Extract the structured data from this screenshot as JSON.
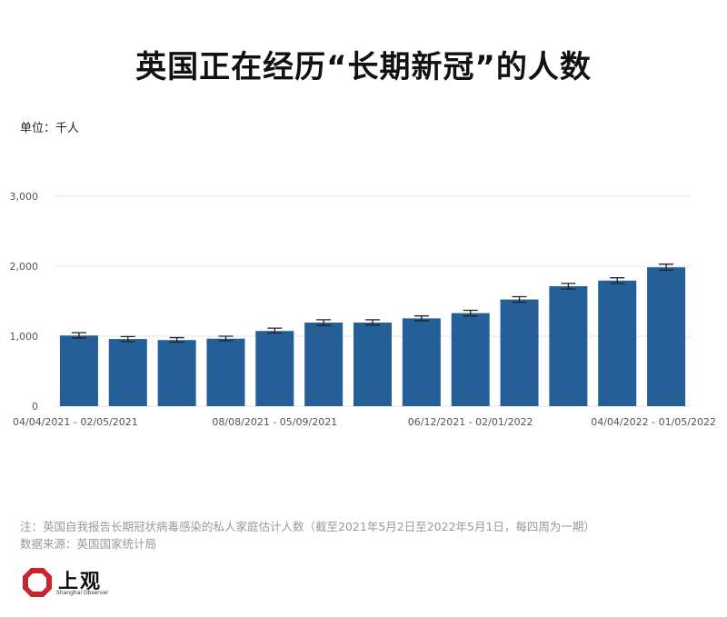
{
  "title": "英国正在经历“长期新冠”的人数",
  "unit_label": "单位：千人",
  "note": "注：英国自我报告长期冠状病毒感染的私人家庭估计人数（截至2021年5月2日至2022年5月1日，每四周为一期）",
  "source": "数据来源：英国国家统计局",
  "logo": {
    "name": "上观",
    "subtitle": "Shanghai Observer"
  },
  "colors": {
    "bar": "#255f97",
    "grid": "#e3e3e3",
    "errorbar": "#222222",
    "logo_red": "#c8262c"
  },
  "chart_data": {
    "type": "bar",
    "title": "英国正在经历“长期新冠”的人数",
    "ylabel": "单位：千人",
    "ylim": [
      0,
      3000
    ],
    "yticks": [
      0,
      1000,
      2000,
      3000
    ],
    "ytick_labels": [
      "0",
      "1,000",
      "2,000",
      "3,000"
    ],
    "grid": true,
    "xtick_labels": [
      {
        "index": 0,
        "label": "04/04/2021 - 02/05/2021"
      },
      {
        "index": 4,
        "label": "08/08/2021 - 05/09/2021"
      },
      {
        "index": 8,
        "label": "06/12/2021 - 02/01/2022"
      },
      {
        "index": 12,
        "label": "04/04/2022 - 01/05/2022"
      }
    ],
    "values": [
      1010,
      960,
      945,
      965,
      1075,
      1195,
      1195,
      1255,
      1330,
      1525,
      1715,
      1795,
      1985
    ],
    "error_low": [
      975,
      925,
      915,
      935,
      1045,
      1155,
      1160,
      1220,
      1290,
      1485,
      1675,
      1755,
      1945
    ],
    "error_high": [
      1050,
      995,
      980,
      1000,
      1115,
      1235,
      1235,
      1290,
      1370,
      1565,
      1755,
      1835,
      2030
    ]
  }
}
